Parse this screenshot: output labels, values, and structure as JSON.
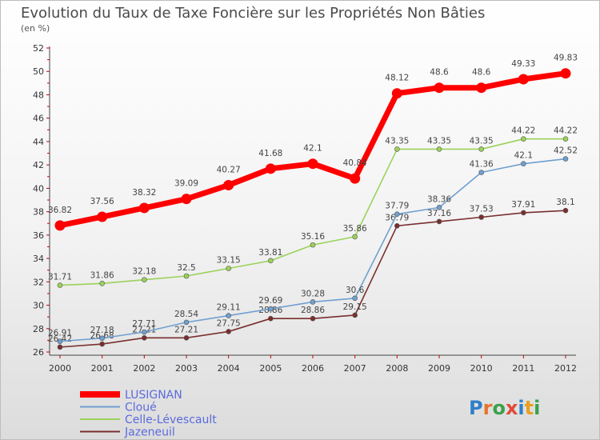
{
  "chart_data": {
    "type": "line",
    "title": "Evolution du Taux de Taxe Foncière sur les Propriétés Non Bâties",
    "subtitle": "(en %)",
    "xlabel": "",
    "ylabel": "(en %)",
    "x": [
      "2000",
      "2001",
      "2002",
      "2003",
      "2004",
      "2005",
      "2006",
      "2007",
      "2008",
      "2009",
      "2010",
      "2011",
      "2012"
    ],
    "ylim": [
      26,
      52
    ],
    "yticks": [
      26,
      28,
      30,
      32,
      34,
      36,
      38,
      40,
      42,
      44,
      46,
      48,
      50,
      52
    ],
    "grid": false,
    "legend_position": "bottom-left",
    "series": [
      {
        "name": "LUSIGNAN",
        "color": "#ff0000",
        "values": [
          36.82,
          37.56,
          38.32,
          39.09,
          40.27,
          41.68,
          42.1,
          40.84,
          48.12,
          48.6,
          48.6,
          49.33,
          49.83
        ],
        "labels": [
          "36.82",
          "37.56",
          "38.32",
          "39.09",
          "40.27",
          "41.68",
          "42.1",
          "40.84",
          "48.12",
          "48.6",
          "48.6",
          "49.33",
          "49.83"
        ]
      },
      {
        "name": "Cloué",
        "color": "#6fa0d0",
        "values": [
          26.91,
          27.18,
          27.71,
          28.54,
          29.11,
          29.69,
          30.28,
          30.6,
          37.79,
          38.36,
          41.36,
          42.1,
          42.52
        ],
        "labels": [
          "26.91",
          "27.18",
          "27.71",
          "28.54",
          "29.11",
          "29.69",
          "30.28",
          "30.6",
          "37.79",
          "38.36",
          "41.36",
          "42.1",
          "42.52"
        ]
      },
      {
        "name": "Celle-Lévescault",
        "color": "#9bd25a",
        "values": [
          31.71,
          31.86,
          32.18,
          32.5,
          33.15,
          33.81,
          35.16,
          35.86,
          43.35,
          43.35,
          43.35,
          44.22,
          44.22
        ],
        "labels": [
          "31.71",
          "31.86",
          "32.18",
          "32.5",
          "33.15",
          "33.81",
          "35.16",
          "35.86",
          "43.35",
          "43.35",
          "43.35",
          "44.22",
          "44.22"
        ]
      },
      {
        "name": "Jazeneuil",
        "color": "#7a2e2e",
        "values": [
          26.42,
          26.68,
          27.21,
          27.21,
          27.75,
          28.86,
          28.86,
          29.15,
          36.79,
          37.16,
          37.53,
          37.91,
          38.1
        ],
        "labels": [
          "26.42",
          "26.68",
          "27.21",
          "27.21",
          "27.75",
          "28.86",
          "28.86",
          "29.15",
          "36.79",
          "37.16",
          "37.53",
          "37.91",
          "38.1"
        ]
      }
    ]
  },
  "brand": {
    "letters": [
      {
        "ch": "P",
        "color": "#2e7fc9"
      },
      {
        "ch": "r",
        "color": "#e8732a"
      },
      {
        "ch": "o",
        "color": "#3aa04a"
      },
      {
        "ch": "x",
        "color": "#e04a3a"
      },
      {
        "ch": "i",
        "color": "#2e7fc9"
      },
      {
        "ch": "t",
        "color": "#e8a020"
      },
      {
        "ch": "i",
        "color": "#3aa04a"
      }
    ]
  }
}
